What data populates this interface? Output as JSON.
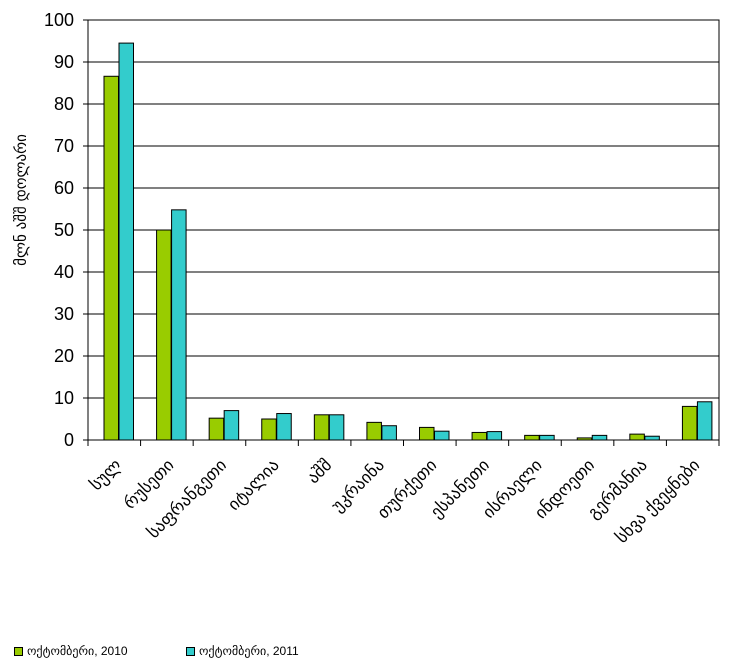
{
  "chart_data": {
    "type": "bar",
    "title": "",
    "xlabel": "",
    "ylabel": "მლნ აშშ დოლარი",
    "ylim": [
      0,
      100
    ],
    "yticks": [
      0,
      10,
      20,
      30,
      40,
      50,
      60,
      70,
      80,
      90,
      100
    ],
    "grid": true,
    "legend_position": "bottom",
    "categories": [
      "სულ",
      "რუსეთი",
      "საფრანგეთი",
      "იტალია",
      "აშშ",
      "უკრაინა",
      "თურქეთი",
      "ესპანეთი",
      "ისრაელი",
      "ინდოეთი",
      "გერმანია",
      "სხვა ქვეყნები"
    ],
    "series": [
      {
        "name": "ოქტომბერი, 2010",
        "color": "#99CC00",
        "values": [
          86.6,
          50.0,
          5.2,
          5.0,
          6.0,
          4.2,
          3.0,
          1.8,
          1.1,
          0.5,
          1.4,
          8.0
        ]
      },
      {
        "name": "ოქტომბერი, 2011",
        "color": "#33CCCC",
        "values": [
          94.5,
          54.8,
          7.0,
          6.3,
          6.0,
          3.4,
          2.1,
          2.0,
          1.1,
          1.1,
          0.9,
          9.1
        ]
      }
    ]
  }
}
